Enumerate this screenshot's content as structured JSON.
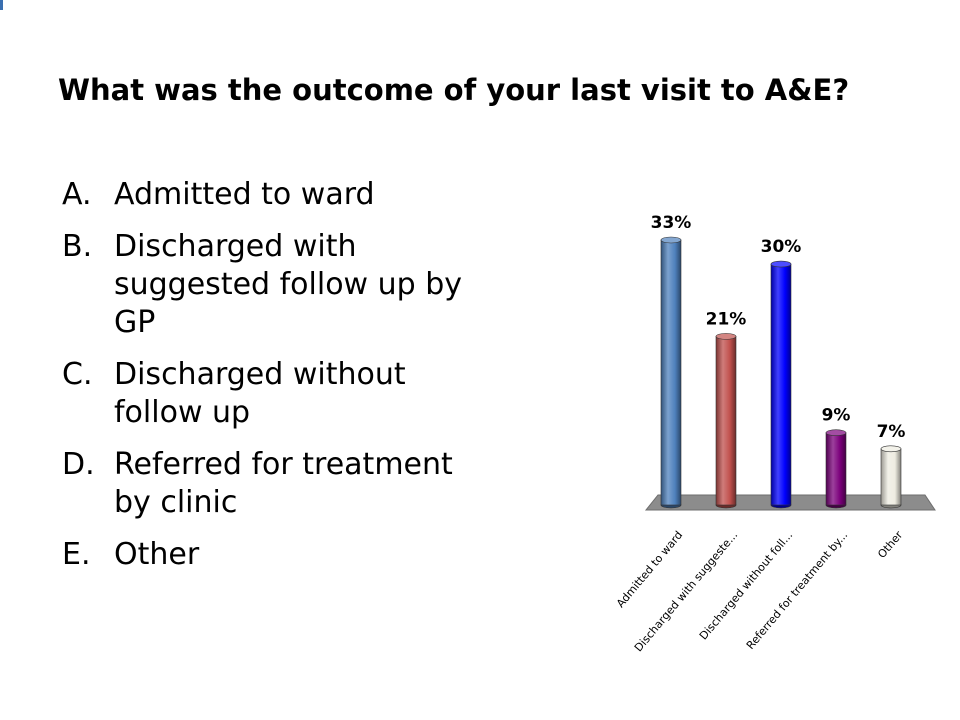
{
  "question": "What was the outcome of your last visit to A&E?",
  "options": [
    {
      "letter": "A.",
      "text": "Admitted to ward"
    },
    {
      "letter": "B.",
      "text": "Discharged with suggested follow up by GP"
    },
    {
      "letter": "C.",
      "text": "Discharged without follow up"
    },
    {
      "letter": "D.",
      "text": "Referred for treatment by clinic"
    },
    {
      "letter": "E.",
      "text": "Other"
    }
  ],
  "chart_data": {
    "type": "bar",
    "categories": [
      "Admitted to ward",
      "Discharged with suggeste...",
      "Discharged without foll...",
      "Referred for treatment by...",
      "Other"
    ],
    "values": [
      33,
      21,
      30,
      9,
      7
    ],
    "data_labels": [
      "33%",
      "21%",
      "30%",
      "9%",
      "7%"
    ],
    "colors": [
      "#4f81bd",
      "#c0504d",
      "#0000ff",
      "#7b007b",
      "#eeece1"
    ],
    "ylim": [
      0,
      33
    ],
    "grid": false,
    "legend": "none",
    "style": "3d-cylinder"
  }
}
